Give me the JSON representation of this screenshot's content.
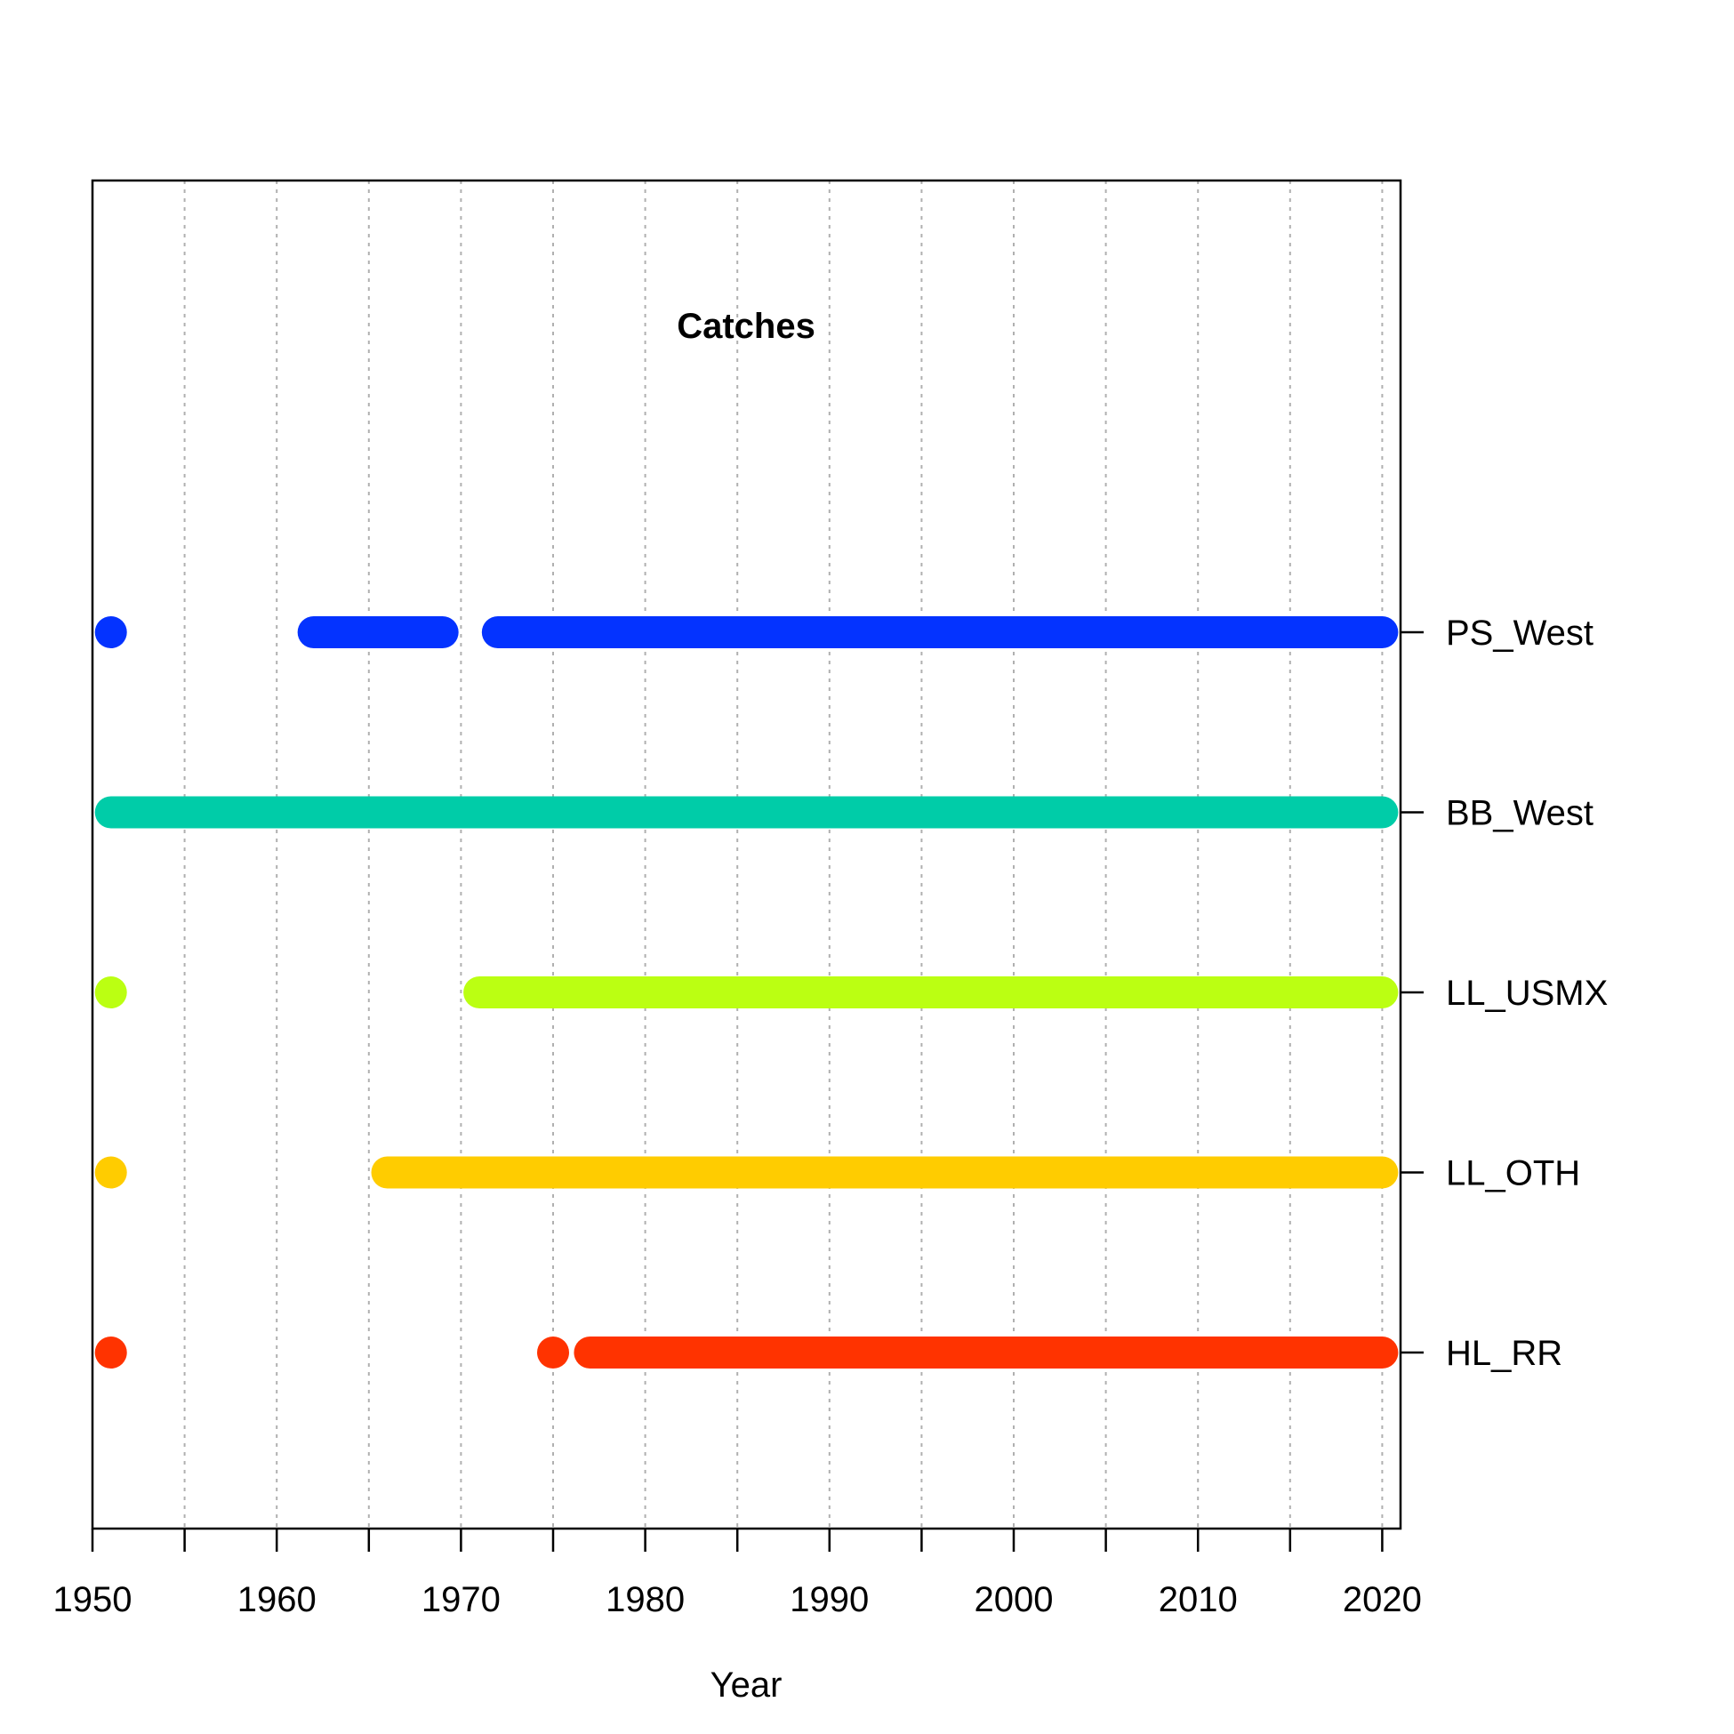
{
  "chart_data": {
    "type": "timeline",
    "title": "Catches",
    "xlabel": "Year",
    "xlim": [
      1950,
      2021
    ],
    "xticks": [
      1950,
      1960,
      1970,
      1980,
      1990,
      2000,
      2010,
      2020
    ],
    "minor_ticks": [
      1955,
      1965,
      1975,
      1985,
      1995,
      2005,
      2015
    ],
    "grid": true,
    "series": [
      {
        "name": "PS_West",
        "color": "#0433ff",
        "segments": [
          [
            1951,
            1951
          ],
          [
            1962,
            1969
          ],
          [
            1972,
            2020
          ]
        ]
      },
      {
        "name": "BB_West",
        "color": "#00cca8",
        "segments": [
          [
            1951,
            2020
          ]
        ]
      },
      {
        "name": "LL_USMX",
        "color": "#bbff12",
        "segments": [
          [
            1951,
            1951
          ],
          [
            1971,
            2020
          ]
        ]
      },
      {
        "name": "LL_OTH",
        "color": "#ffcc00",
        "segments": [
          [
            1951,
            1951
          ],
          [
            1966,
            2020
          ]
        ]
      },
      {
        "name": "HL_RR",
        "color": "#ff3300",
        "segments": [
          [
            1951,
            1951
          ],
          [
            1975,
            1975
          ],
          [
            1977,
            2020
          ]
        ]
      }
    ]
  }
}
